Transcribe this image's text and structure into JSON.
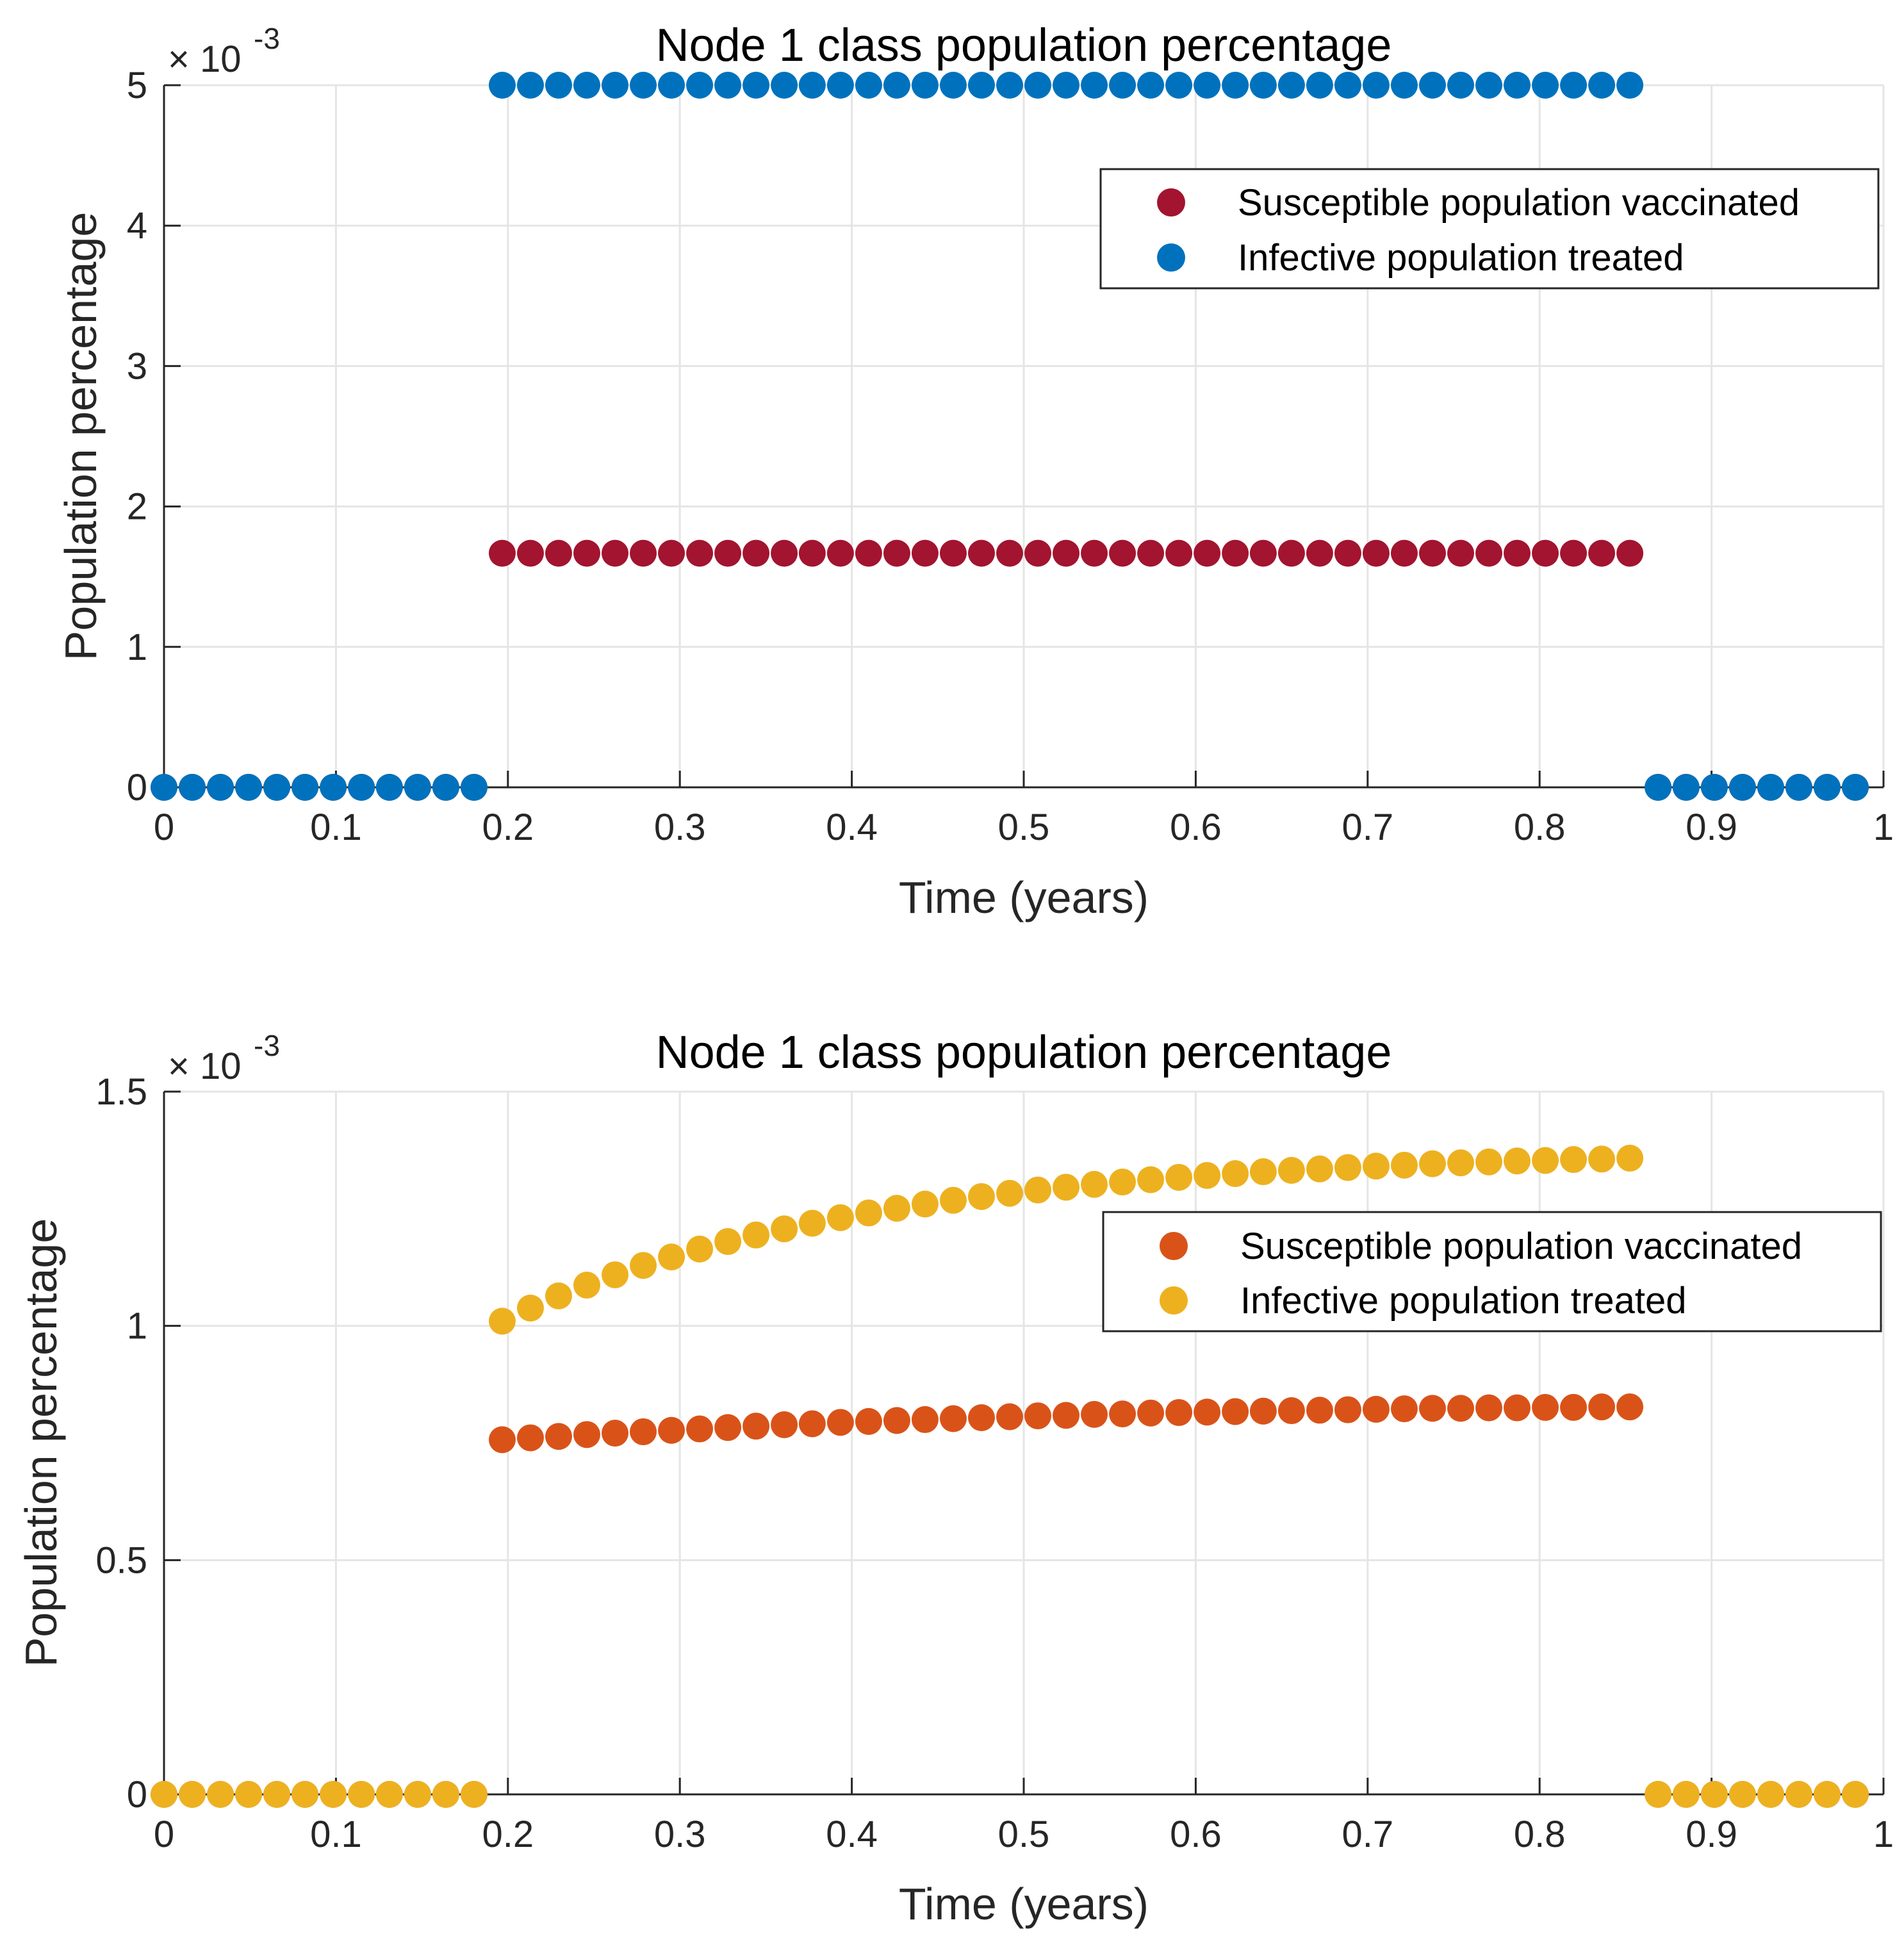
{
  "figure": {
    "panels": 2,
    "background_color": "#ffffff",
    "axis_color": "#262626",
    "grid_color": "#e5e5e5"
  },
  "chart_data": [
    {
      "type": "scatter",
      "title": "Node 1 class population percentage",
      "xlabel": "Time (years)",
      "ylabel": "Population percentage",
      "exponent_label": {
        "base": "× 10",
        "power": "-3"
      },
      "xlim": [
        0,
        1
      ],
      "ylim": [
        0,
        5
      ],
      "xticks": [
        0,
        0.1,
        0.2,
        0.3,
        0.4,
        0.5,
        0.6,
        0.7,
        0.8,
        0.9,
        1
      ],
      "xtick_labels": [
        "0",
        "0.1",
        "0.2",
        "0.3",
        "0.4",
        "0.5",
        "0.6",
        "0.7",
        "0.8",
        "0.9",
        "1"
      ],
      "yticks": [
        0,
        1,
        2,
        3,
        4,
        5
      ],
      "ytick_labels": [
        "0",
        "1",
        "2",
        "3",
        "4",
        "5"
      ],
      "grid": true,
      "legend_position": "top-right",
      "series": [
        {
          "name": "Susceptible population vaccinated",
          "color": "#a2142f",
          "x": [
            0,
            0.0164,
            0.0328,
            0.0492,
            0.0656,
            0.082,
            0.0984,
            0.1148,
            0.1311,
            0.1475,
            0.1639,
            0.1803,
            0.1967,
            0.2131,
            0.2295,
            0.2459,
            0.2623,
            0.2787,
            0.2951,
            0.3115,
            0.3279,
            0.3443,
            0.3607,
            0.377,
            0.3934,
            0.4098,
            0.4262,
            0.4426,
            0.459,
            0.4754,
            0.4918,
            0.5082,
            0.5246,
            0.541,
            0.5574,
            0.5738,
            0.5902,
            0.6066,
            0.623,
            0.6393,
            0.6557,
            0.6721,
            0.6885,
            0.7049,
            0.7213,
            0.7377,
            0.7541,
            0.7705,
            0.7869,
            0.8033,
            0.8197,
            0.8361,
            0.8525,
            0.8689,
            0.8852,
            0.9016,
            0.918,
            0.9344,
            0.9508,
            0.9672,
            0.9836
          ],
          "y": [
            0,
            0,
            0,
            0,
            0,
            0,
            0,
            0,
            0,
            0,
            0,
            0,
            1.667,
            1.667,
            1.667,
            1.667,
            1.667,
            1.667,
            1.667,
            1.667,
            1.667,
            1.667,
            1.667,
            1.667,
            1.667,
            1.667,
            1.667,
            1.667,
            1.667,
            1.667,
            1.667,
            1.667,
            1.667,
            1.667,
            1.667,
            1.667,
            1.667,
            1.667,
            1.667,
            1.667,
            1.667,
            1.667,
            1.667,
            1.667,
            1.667,
            1.667,
            1.667,
            1.667,
            1.667,
            1.667,
            1.667,
            1.667,
            1.667,
            0,
            0,
            0,
            0,
            0,
            0,
            0,
            0
          ]
        },
        {
          "name": "Infective population treated",
          "color": "#0072bd",
          "x": [
            0,
            0.0164,
            0.0328,
            0.0492,
            0.0656,
            0.082,
            0.0984,
            0.1148,
            0.1311,
            0.1475,
            0.1639,
            0.1803,
            0.1967,
            0.2131,
            0.2295,
            0.2459,
            0.2623,
            0.2787,
            0.2951,
            0.3115,
            0.3279,
            0.3443,
            0.3607,
            0.377,
            0.3934,
            0.4098,
            0.4262,
            0.4426,
            0.459,
            0.4754,
            0.4918,
            0.5082,
            0.5246,
            0.541,
            0.5574,
            0.5738,
            0.5902,
            0.6066,
            0.623,
            0.6393,
            0.6557,
            0.6721,
            0.6885,
            0.7049,
            0.7213,
            0.7377,
            0.7541,
            0.7705,
            0.7869,
            0.8033,
            0.8197,
            0.8361,
            0.8525,
            0.8689,
            0.8852,
            0.9016,
            0.918,
            0.9344,
            0.9508,
            0.9672,
            0.9836
          ],
          "y": [
            0,
            0,
            0,
            0,
            0,
            0,
            0,
            0,
            0,
            0,
            0,
            0,
            5,
            5,
            5,
            5,
            5,
            5,
            5,
            5,
            5,
            5,
            5,
            5,
            5,
            5,
            5,
            5,
            5,
            5,
            5,
            5,
            5,
            5,
            5,
            5,
            5,
            5,
            5,
            5,
            5,
            5,
            5,
            5,
            5,
            5,
            5,
            5,
            5,
            5,
            5,
            5,
            5,
            0,
            0,
            0,
            0,
            0,
            0,
            0,
            0
          ]
        }
      ]
    },
    {
      "type": "scatter",
      "title": "Node 1 class population percentage",
      "xlabel": "Time (years)",
      "ylabel": "Population percentage",
      "exponent_label": {
        "base": "× 10",
        "power": "-3"
      },
      "xlim": [
        0,
        1
      ],
      "ylim": [
        0,
        1.5
      ],
      "xticks": [
        0,
        0.1,
        0.2,
        0.3,
        0.4,
        0.5,
        0.6,
        0.7,
        0.8,
        0.9,
        1
      ],
      "xtick_labels": [
        "0",
        "0.1",
        "0.2",
        "0.3",
        "0.4",
        "0.5",
        "0.6",
        "0.7",
        "0.8",
        "0.9",
        "1"
      ],
      "yticks": [
        0,
        0.5,
        1,
        1.5
      ],
      "ytick_labels": [
        "0",
        "0.5",
        "1",
        "1.5"
      ],
      "grid": true,
      "legend_position": "top-right",
      "series": [
        {
          "name": "Susceptible population vaccinated",
          "color": "#d95319",
          "x": [
            0,
            0.0164,
            0.0328,
            0.0492,
            0.0656,
            0.082,
            0.0984,
            0.1148,
            0.1311,
            0.1475,
            0.1639,
            0.1803,
            0.1967,
            0.2131,
            0.2295,
            0.2459,
            0.2623,
            0.2787,
            0.2951,
            0.3115,
            0.3279,
            0.3443,
            0.3607,
            0.377,
            0.3934,
            0.4098,
            0.4262,
            0.4426,
            0.459,
            0.4754,
            0.4918,
            0.5082,
            0.5246,
            0.541,
            0.5574,
            0.5738,
            0.5902,
            0.6066,
            0.623,
            0.6393,
            0.6557,
            0.6721,
            0.6885,
            0.7049,
            0.7213,
            0.7377,
            0.7541,
            0.7705,
            0.7869,
            0.8033,
            0.8197,
            0.8361,
            0.8525,
            0.8689,
            0.8852,
            0.9016,
            0.918,
            0.9344,
            0.9508,
            0.9672,
            0.9836
          ],
          "y": [
            0,
            0,
            0,
            0,
            0,
            0,
            0,
            0,
            0,
            0,
            0,
            0,
            0.757,
            0.761,
            0.764,
            0.768,
            0.771,
            0.774,
            0.777,
            0.78,
            0.783,
            0.786,
            0.789,
            0.791,
            0.794,
            0.796,
            0.798,
            0.8,
            0.802,
            0.804,
            0.806,
            0.808,
            0.809,
            0.811,
            0.812,
            0.814,
            0.815,
            0.816,
            0.817,
            0.818,
            0.819,
            0.82,
            0.821,
            0.822,
            0.823,
            0.824,
            0.824,
            0.825,
            0.825,
            0.826,
            0.826,
            0.827,
            0.827,
            0,
            0,
            0,
            0,
            0,
            0,
            0,
            0
          ]
        },
        {
          "name": "Infective population treated",
          "color": "#edb120",
          "x": [
            0,
            0.0164,
            0.0328,
            0.0492,
            0.0656,
            0.082,
            0.0984,
            0.1148,
            0.1311,
            0.1475,
            0.1639,
            0.1803,
            0.1967,
            0.2131,
            0.2295,
            0.2459,
            0.2623,
            0.2787,
            0.2951,
            0.3115,
            0.3279,
            0.3443,
            0.3607,
            0.377,
            0.3934,
            0.4098,
            0.4262,
            0.4426,
            0.459,
            0.4754,
            0.4918,
            0.5082,
            0.5246,
            0.541,
            0.5574,
            0.5738,
            0.5902,
            0.6066,
            0.623,
            0.6393,
            0.6557,
            0.6721,
            0.6885,
            0.7049,
            0.7213,
            0.7377,
            0.7541,
            0.7705,
            0.7869,
            0.8033,
            0.8197,
            0.8361,
            0.8525,
            0.8689,
            0.8852,
            0.9016,
            0.918,
            0.9344,
            0.9508,
            0.9672,
            0.9836
          ],
          "y": [
            0,
            0,
            0,
            0,
            0,
            0,
            0,
            0,
            0,
            0,
            0,
            0,
            1.01,
            1.038,
            1.064,
            1.087,
            1.109,
            1.129,
            1.147,
            1.164,
            1.18,
            1.194,
            1.207,
            1.219,
            1.231,
            1.241,
            1.251,
            1.26,
            1.268,
            1.276,
            1.283,
            1.29,
            1.296,
            1.302,
            1.307,
            1.312,
            1.317,
            1.321,
            1.325,
            1.329,
            1.332,
            1.335,
            1.338,
            1.341,
            1.343,
            1.346,
            1.348,
            1.35,
            1.352,
            1.353,
            1.355,
            1.356,
            1.358,
            0,
            0,
            0,
            0,
            0,
            0,
            0,
            0
          ]
        }
      ]
    }
  ]
}
